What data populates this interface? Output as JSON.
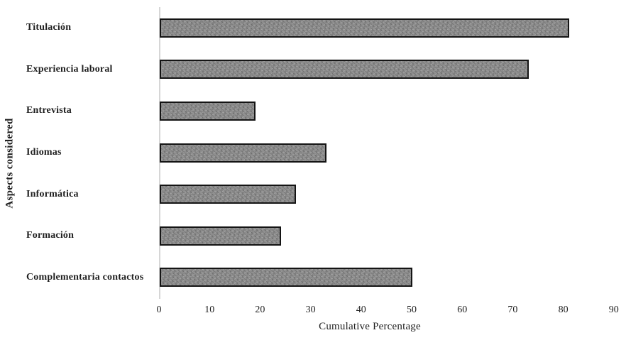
{
  "chart_data": {
    "type": "bar",
    "orientation": "horizontal",
    "categories": [
      "Titulación",
      "Experiencia laboral",
      "Entrevista",
      "Idiomas",
      "Informática",
      "Formación",
      "Complementaria contactos"
    ],
    "values": [
      81,
      73,
      19,
      33,
      27,
      24,
      50
    ],
    "xlabel": "Cumulative Percentage",
    "ylabel": "Aspects considered",
    "x_ticks": [
      0,
      10,
      20,
      30,
      40,
      50,
      60,
      70,
      80,
      90
    ],
    "xlim": [
      0,
      90
    ],
    "grid": false,
    "legend": "none",
    "colors": {
      "bar_fill": "#8d8d8d",
      "bar_border": "#141414",
      "axis_line": "#d6d6d6",
      "text": "#1f1f1f",
      "background": "#ffffff"
    }
  }
}
